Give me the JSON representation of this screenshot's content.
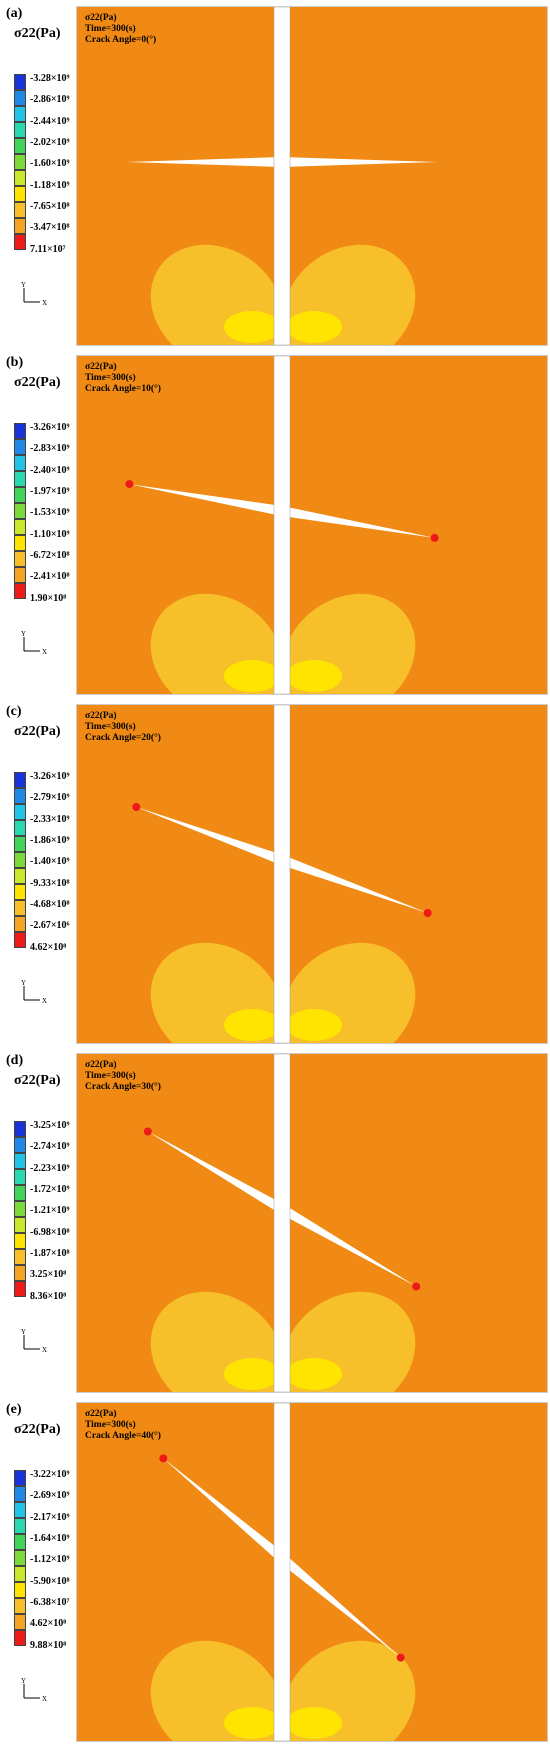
{
  "colors": {
    "background": "#F08A14",
    "lobe": "#F7C02A",
    "inner": "#FFE400",
    "hot": "#EE1A1A",
    "wellbore": "#FFFFFF",
    "scale": [
      "#1A33D9",
      "#2188E8",
      "#22C3E6",
      "#2AD8B0",
      "#44D45C",
      "#7BD93A",
      "#C7E82B",
      "#FFE400",
      "#F7C02A",
      "#F4A425",
      "#EE1A1A"
    ]
  },
  "info": {
    "stress": "σ22(Pa)",
    "time": "Time=300(s)"
  },
  "axes": {
    "y": "Y",
    "x": "X"
  },
  "panels": [
    {
      "label": "(a)",
      "legend_title": "σ22(Pa)",
      "crack_angle_text": "Crack Angle=0(°)",
      "angle": 0,
      "ticks": [
        "-3.28×10⁹",
        "-2.86×10⁹",
        "-2.44×10⁹",
        "-2.02×10⁹",
        "-1.60×10⁹",
        "-1.18×10⁹",
        "-7.65×10⁸",
        "-3.47×10⁸",
        "7.11×10⁷"
      ]
    },
    {
      "label": "(b)",
      "legend_title": "σ22(Pa)",
      "crack_angle_text": "Crack Angle=10(°)",
      "angle": 10,
      "ticks": [
        "-3.26×10⁹",
        "-2.83×10⁹",
        "-2.40×10⁹",
        "-1.97×10⁹",
        "-1.53×10⁹",
        "-1.10×10⁹",
        "-6.72×10⁸",
        "-2.41×10⁸",
        "1.90×10⁸"
      ]
    },
    {
      "label": "(c)",
      "legend_title": "σ22(Pa)",
      "crack_angle_text": "Crack Angle=20(°)",
      "angle": 20,
      "ticks": [
        "-3.26×10⁹",
        "-2.79×10⁹",
        "-2.33×10⁹",
        "-1.86×10⁹",
        "-1.40×10⁹",
        "-9.33×10⁸",
        "-4.68×10⁸",
        "-2.67×10⁶",
        "4.62×10⁸"
      ]
    },
    {
      "label": "(d)",
      "legend_title": "σ22(Pa)",
      "crack_angle_text": "Crack Angle=30(°)",
      "angle": 30,
      "ticks": [
        "-3.25×10⁹",
        "-2.74×10⁹",
        "-2.23×10⁹",
        "-1.72×10⁹",
        "-1.21×10⁹",
        "-6.98×10⁸",
        "-1.87×10⁸",
        "3.25×10⁸",
        "8.36×10⁸"
      ]
    },
    {
      "label": "(e)",
      "legend_title": "σ22(Pa)",
      "crack_angle_text": "Crack Angle=40(°)",
      "angle": 40,
      "ticks": [
        "-3.22×10⁹",
        "-2.69×10⁹",
        "-2.17×10⁹",
        "-1.64×10⁹",
        "-1.12×10⁹",
        "-5.90×10⁸",
        "-6.38×10⁷",
        "4.62×10⁸",
        "9.88×10⁸"
      ]
    }
  ]
}
